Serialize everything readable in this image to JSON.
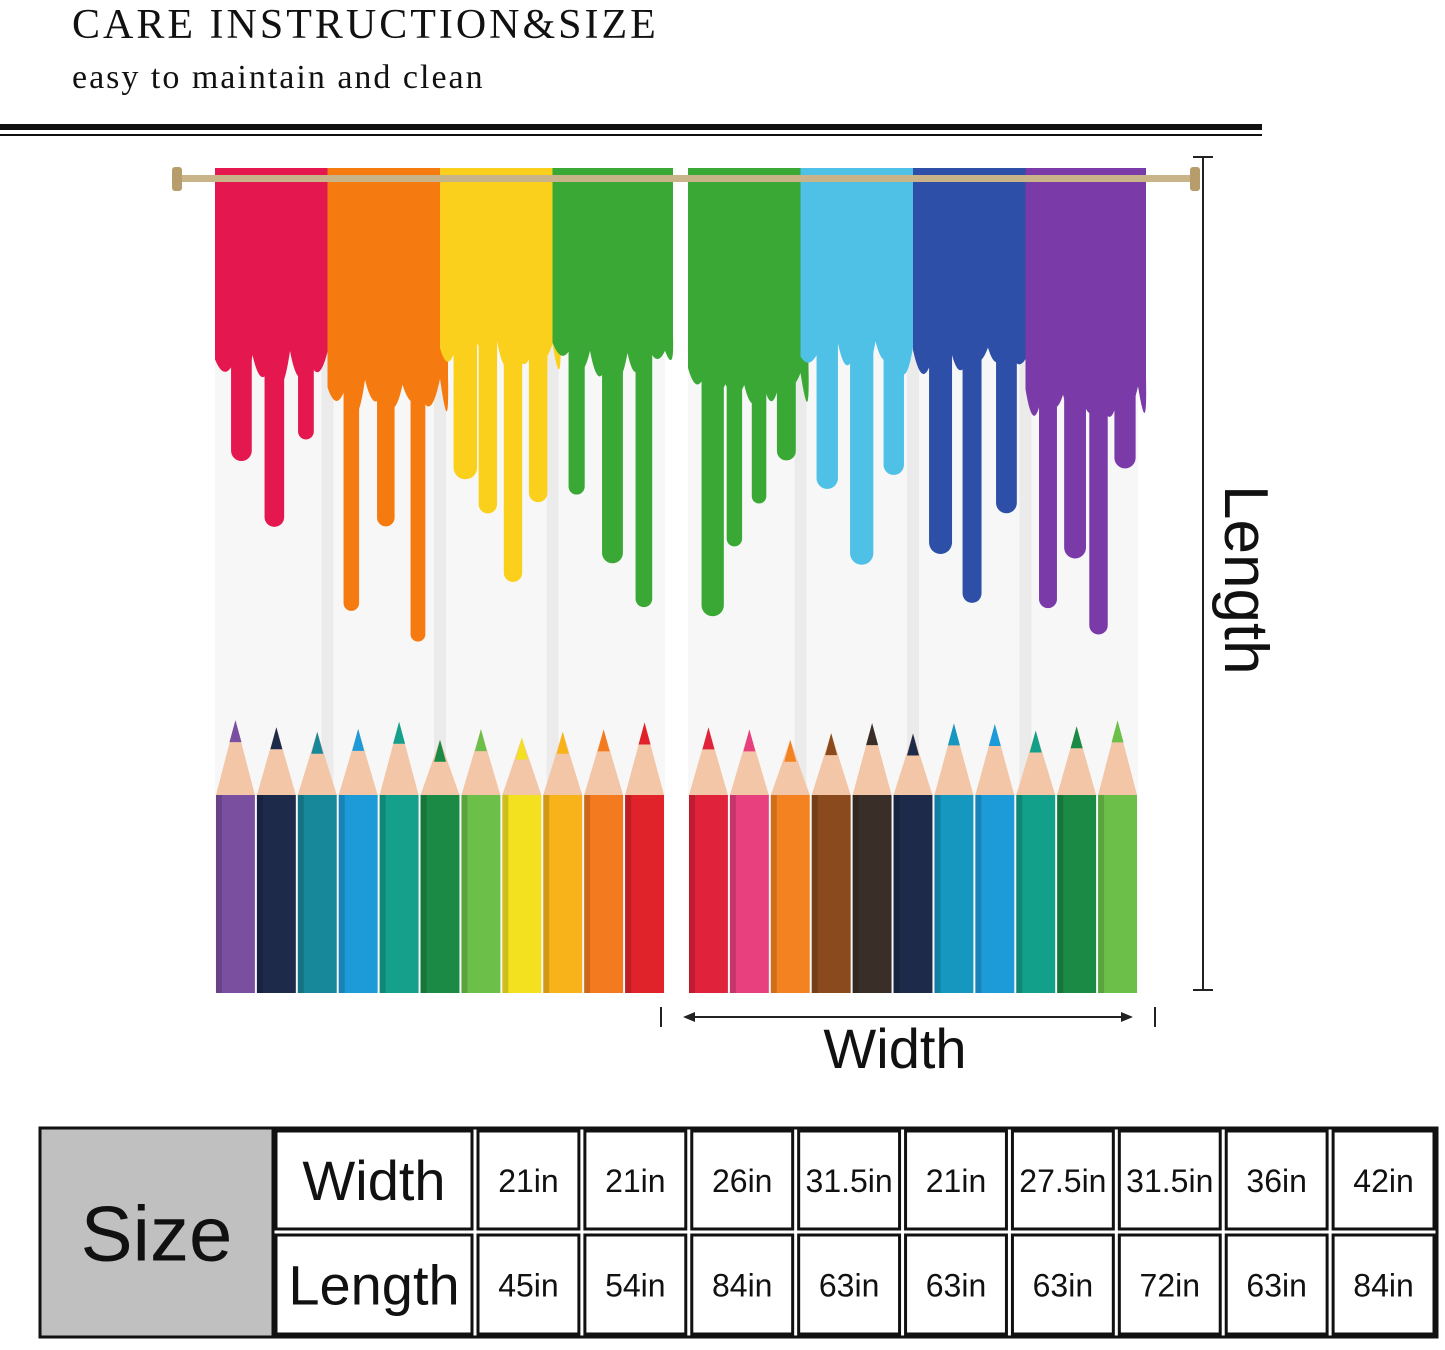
{
  "header": {
    "title": "CARE INSTRUCTION&SIZE",
    "subtitle": "easy to maintain and clean"
  },
  "diagram": {
    "length_label": "Length",
    "width_label": "Width"
  },
  "table": {
    "corner": "Size",
    "rows": [
      {
        "label": "Width",
        "values": [
          "21in",
          "21in",
          "26in",
          "31.5in",
          "21in",
          "27.5in",
          "31.5in",
          "36in",
          "42in"
        ]
      },
      {
        "label": "Length",
        "values": [
          "45in",
          "54in",
          "84in",
          "63in",
          "63in",
          "63in",
          "72in",
          "63in",
          "84in"
        ]
      }
    ]
  }
}
